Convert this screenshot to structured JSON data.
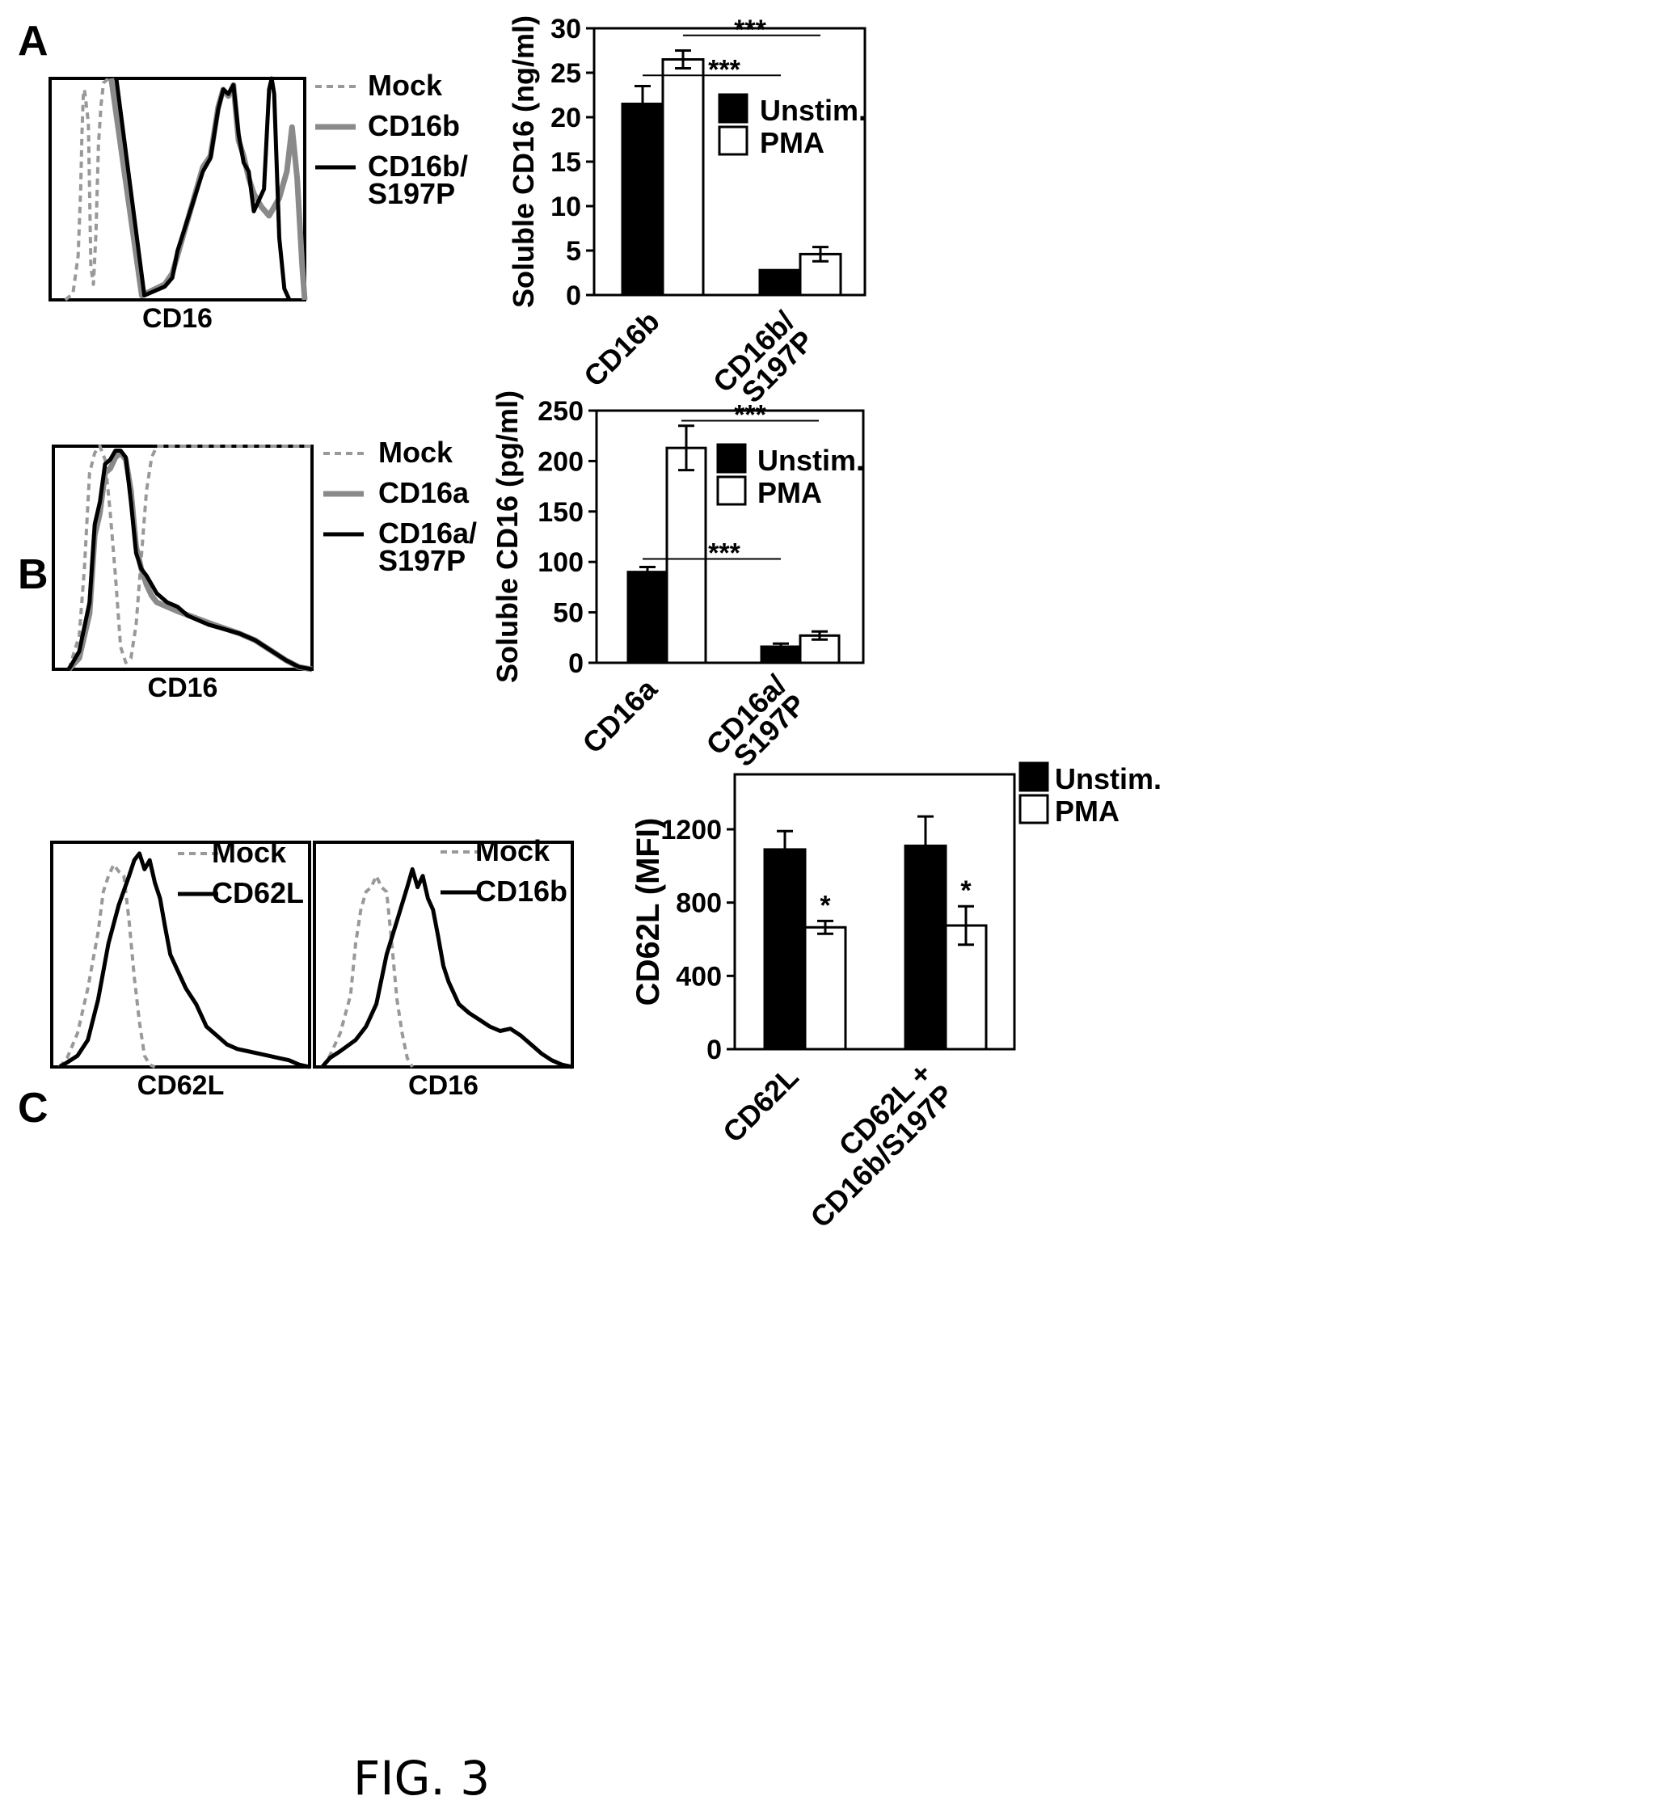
{
  "figure_label": "FIG. 3",
  "colors": {
    "unstim": "#000000",
    "pma": "#ffffff",
    "mock": "#999999",
    "variant": "#8a8a8a",
    "mutant": "#000000"
  },
  "panels": [
    {
      "label": "A",
      "histograms": [
        {
          "xlabel": "CD16",
          "legend": [
            {
              "label": "Mock",
              "style": "dashed-gray"
            },
            {
              "label": "CD16b",
              "style": "solid-gray"
            },
            {
              "label": "CD16b/ S197P",
              "style": "solid-black"
            }
          ]
        }
      ]
    },
    {
      "label": "B",
      "histograms": [
        {
          "xlabel": "CD16",
          "legend": [
            {
              "label": "Mock",
              "style": "dashed-gray"
            },
            {
              "label": "CD16a",
              "style": "solid-gray"
            },
            {
              "label": "CD16a/ S197P",
              "style": "solid-black"
            }
          ]
        }
      ]
    },
    {
      "label": "C",
      "histograms": [
        {
          "xlabel": "CD62L",
          "legend": [
            {
              "label": "Mock",
              "style": "dashed-gray"
            },
            {
              "label": "CD62L",
              "style": "solid-black"
            }
          ]
        },
        {
          "xlabel": "CD16",
          "legend": [
            {
              "label": "Mock",
              "style": "dashed-gray"
            },
            {
              "label": "CD16b",
              "style": "solid-black"
            }
          ]
        }
      ]
    }
  ],
  "chart_data": [
    {
      "panel": "A",
      "type": "bar",
      "ylabel": "Soluble CD16 (ng/ml)",
      "ylim": [
        0,
        30
      ],
      "yticks": [
        "0",
        "5",
        "10",
        "15",
        "20",
        "25",
        "30"
      ],
      "categories": [
        "CD16b",
        "CD16b/ S197P"
      ],
      "legend_position": "right",
      "series": [
        {
          "name": "Unstim.",
          "values": [
            21.5,
            2.8
          ],
          "errors": [
            2.0,
            0
          ]
        },
        {
          "name": "PMA",
          "values": [
            26.5,
            4.6
          ],
          "errors": [
            1.0,
            0.8
          ]
        }
      ],
      "significance": [
        {
          "label": "***",
          "between": [
            "CD16b PMA",
            "CD16b/S197P PMA"
          ]
        },
        {
          "label": "***",
          "between": [
            "CD16b PMA",
            "CD16b/S197P Unstim."
          ]
        }
      ]
    },
    {
      "panel": "B",
      "type": "bar",
      "ylabel": "Soluble CD16 (pg/ml)",
      "ylim": [
        0,
        250
      ],
      "yticks": [
        "0",
        "50",
        "100",
        "150",
        "200",
        "250"
      ],
      "categories": [
        "CD16a",
        "CD16a/ S197P"
      ],
      "legend_position": "right",
      "series": [
        {
          "name": "Unstim.",
          "values": [
            90,
            16
          ],
          "errors": [
            5,
            3
          ]
        },
        {
          "name": "PMA",
          "values": [
            213,
            27
          ],
          "errors": [
            22,
            4
          ]
        }
      ],
      "significance": [
        {
          "label": "***",
          "between": [
            "CD16a PMA",
            "CD16a/S197P PMA"
          ]
        },
        {
          "label": "***",
          "between": [
            "CD16a Unstim.",
            "CD16a/S197P Unstim."
          ]
        }
      ]
    },
    {
      "panel": "C",
      "type": "bar",
      "ylabel": "CD62L (MFI)",
      "ylim": [
        0,
        1500
      ],
      "yticks": [
        "0",
        "400",
        "800",
        "1200"
      ],
      "categories": [
        "CD62L",
        "CD62L + CD16b/S197P"
      ],
      "legend_position": "top-right",
      "series": [
        {
          "name": "Unstim.",
          "values": [
            1090,
            1110
          ],
          "errors": [
            100,
            160
          ]
        },
        {
          "name": "PMA",
          "values": [
            665,
            675
          ],
          "errors": [
            35,
            105
          ]
        }
      ],
      "significance": [
        {
          "label": "*",
          "category": "CD62L"
        },
        {
          "label": "*",
          "category": "CD62L + CD16b/S197P"
        }
      ]
    }
  ]
}
